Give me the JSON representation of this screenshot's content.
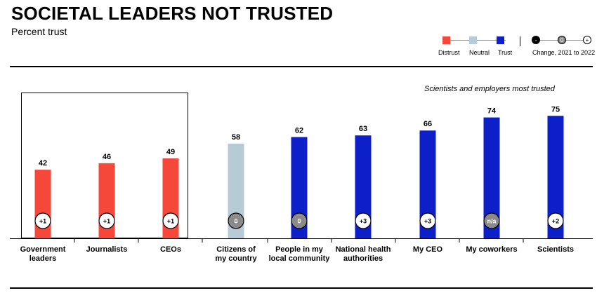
{
  "header": {
    "title": "SOCIETAL LEADERS NOT TRUSTED",
    "subtitle": "Percent trust"
  },
  "legend": {
    "distrust": "Distrust",
    "neutral": "Neutral",
    "trust": "Trust",
    "change_label": "Change, 2021 to 2022",
    "change_symbols": [
      "-",
      "0",
      "+"
    ]
  },
  "annotation": "Scientists and employers most trusted",
  "colors": {
    "distrust": "#f5473a",
    "neutral": "#b6cbd6",
    "trust": "#0c1fc9",
    "change_zero_fill": "#8a8a8a"
  },
  "chart_data": {
    "type": "bar",
    "title": "SOCIETAL LEADERS NOT TRUSTED",
    "subtitle": "Percent trust",
    "ylim": [
      0,
      100
    ],
    "grid": false,
    "legend_position": "top-right",
    "categories": [
      [
        "Government",
        "leaders"
      ],
      [
        "Journalists"
      ],
      [
        "CEOs"
      ],
      [
        "Citizens of",
        "my country"
      ],
      [
        "People in my",
        "local community"
      ],
      [
        "National health",
        "authorities"
      ],
      [
        "My CEO"
      ],
      [
        "My coworkers"
      ],
      [
        "Scientists"
      ]
    ],
    "values": [
      42,
      46,
      49,
      58,
      62,
      63,
      66,
      74,
      75
    ],
    "trust_level": [
      "distrust",
      "distrust",
      "distrust",
      "neutral",
      "trust",
      "trust",
      "trust",
      "trust",
      "trust"
    ],
    "change_2021_to_2022": [
      "+1",
      "+1",
      "+1",
      "0",
      "0",
      "+3",
      "+3",
      "n/a",
      "+2"
    ]
  }
}
